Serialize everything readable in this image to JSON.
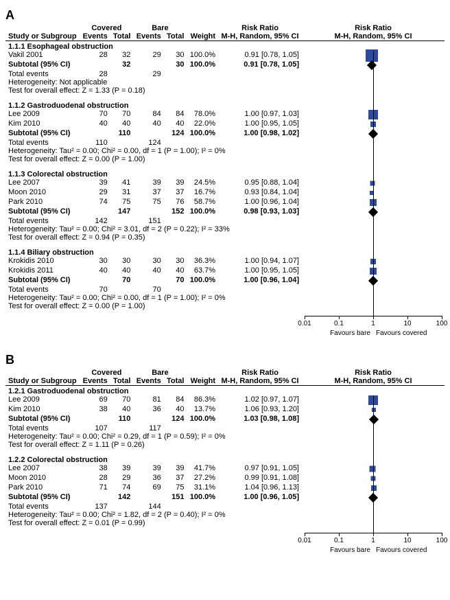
{
  "panels": [
    {
      "label": "A",
      "groupPrefix": "1.1",
      "groups": [
        {
          "title": "1.1.1 Esophageal obstruction",
          "rows": [
            {
              "study": "Vakil 2001",
              "ce": 28,
              "ct": 32,
              "be": 29,
              "bt": 30,
              "w": "100.0%",
              "rr": "0.91 [0.78, 1.05]",
              "pt": 0.91,
              "lo": 0.78,
              "hi": 1.05,
              "sz": 18
            }
          ],
          "subtotal": {
            "ct": 32,
            "bt": 30,
            "w": "100.0%",
            "rr": "0.91 [0.78, 1.05]",
            "pt": 0.91
          },
          "totalEvents": {
            "c": 28,
            "b": 29
          },
          "het": "Heterogeneity: Not applicable",
          "eff": "Test for overall effect: Z = 1.33 (P = 0.18)"
        },
        {
          "title": "1.1.2 Gastroduodenal obstruction",
          "rows": [
            {
              "study": "Lee 2009",
              "ce": 70,
              "ct": 70,
              "be": 84,
              "bt": 84,
              "w": "78.0%",
              "rr": "1.00 [0.97, 1.03]",
              "pt": 1.0,
              "lo": 0.97,
              "hi": 1.03,
              "sz": 14
            },
            {
              "study": "Kim 2010",
              "ce": 40,
              "ct": 40,
              "be": 40,
              "bt": 40,
              "w": "22.0%",
              "rr": "1.00 [0.95, 1.05]",
              "pt": 1.0,
              "lo": 0.95,
              "hi": 1.05,
              "sz": 8
            }
          ],
          "subtotal": {
            "ct": 110,
            "bt": 124,
            "w": "100.0%",
            "rr": "1.00 [0.98, 1.02]",
            "pt": 1.0
          },
          "totalEvents": {
            "c": 110,
            "b": 124
          },
          "het": "Heterogeneity: Tau² = 0.00; Chi² = 0.00, df = 1 (P = 1.00); I² = 0%",
          "eff": "Test for overall effect: Z = 0.00 (P = 1.00)"
        },
        {
          "title": "1.1.3 Colorectal obstruction",
          "rows": [
            {
              "study": "Lee 2007",
              "ce": 39,
              "ct": 41,
              "be": 39,
              "bt": 39,
              "w": "24.5%",
              "rr": "0.95 [0.88, 1.04]",
              "pt": 0.95,
              "lo": 0.88,
              "hi": 1.04,
              "sz": 7
            },
            {
              "study": "Moon 2010",
              "ce": 29,
              "ct": 31,
              "be": 37,
              "bt": 37,
              "w": "16.7%",
              "rr": "0.93 [0.84, 1.04]",
              "pt": 0.93,
              "lo": 0.84,
              "hi": 1.04,
              "sz": 6
            },
            {
              "study": "Park 2010",
              "ce": 74,
              "ct": 75,
              "be": 75,
              "bt": 76,
              "w": "58.7%",
              "rr": "1.00 [0.96, 1.04]",
              "pt": 1.0,
              "lo": 0.96,
              "hi": 1.04,
              "sz": 10
            }
          ],
          "subtotal": {
            "ct": 147,
            "bt": 152,
            "w": "100.0%",
            "rr": "0.98 [0.93, 1.03]",
            "pt": 0.98
          },
          "totalEvents": {
            "c": 142,
            "b": 151
          },
          "het": "Heterogeneity: Tau² = 0.00; Chi² = 3.01, df = 2 (P = 0.22); I² = 33%",
          "eff": "Test for overall effect: Z = 0.94 (P = 0.35)"
        },
        {
          "title": "1.1.4 Biliary obstruction",
          "rows": [
            {
              "study": "Krokidis 2010",
              "ce": 30,
              "ct": 30,
              "be": 30,
              "bt": 30,
              "w": "36.3%",
              "rr": "1.00 [0.94, 1.07]",
              "pt": 1.0,
              "lo": 0.94,
              "hi": 1.07,
              "sz": 8
            },
            {
              "study": "Krokidis 2011",
              "ce": 40,
              "ct": 40,
              "be": 40,
              "bt": 40,
              "w": "63.7%",
              "rr": "1.00 [0.95, 1.05]",
              "pt": 1.0,
              "lo": 0.95,
              "hi": 1.05,
              "sz": 10
            }
          ],
          "subtotal": {
            "ct": 70,
            "bt": 70,
            "w": "100.0%",
            "rr": "1.00 [0.96, 1.04]",
            "pt": 1.0
          },
          "totalEvents": {
            "c": 70,
            "b": 70
          },
          "het": "Heterogeneity: Tau² = 0.00; Chi² = 0.00, df = 1 (P = 1.00); I² = 0%",
          "eff": "Test for overall effect: Z = 0.00 (P = 1.00)"
        }
      ]
    },
    {
      "label": "B",
      "groupPrefix": "1.2",
      "groups": [
        {
          "title": "1.2.1 Gastroduodenal obstruction",
          "rows": [
            {
              "study": "Lee 2009",
              "ce": 69,
              "ct": 70,
              "be": 81,
              "bt": 84,
              "w": "86.3%",
              "rr": "1.02 [0.97, 1.07]",
              "pt": 1.02,
              "lo": 0.97,
              "hi": 1.07,
              "sz": 14
            },
            {
              "study": "Kim 2010",
              "ce": 38,
              "ct": 40,
              "be": 36,
              "bt": 40,
              "w": "13.7%",
              "rr": "1.06 [0.93, 1.20]",
              "pt": 1.06,
              "lo": 0.93,
              "hi": 1.2,
              "sz": 6
            }
          ],
          "subtotal": {
            "ct": 110,
            "bt": 124,
            "w": "100.0%",
            "rr": "1.03 [0.98, 1.08]",
            "pt": 1.03
          },
          "totalEvents": {
            "c": 107,
            "b": 117
          },
          "het": "Heterogeneity: Tau² = 0.00; Chi² = 0.29, df = 1 (P = 0.59); I² = 0%",
          "eff": "Test for overall effect: Z = 1.11 (P = 0.26)"
        },
        {
          "title": "1.2.2 Colorectal obstruction",
          "rows": [
            {
              "study": "Lee 2007",
              "ce": 38,
              "ct": 39,
              "be": 39,
              "bt": 39,
              "w": "41.7%",
              "rr": "0.97 [0.91, 1.05]",
              "pt": 0.97,
              "lo": 0.91,
              "hi": 1.05,
              "sz": 9
            },
            {
              "study": "Moon 2010",
              "ce": 28,
              "ct": 29,
              "be": 36,
              "bt": 37,
              "w": "27.2%",
              "rr": "0.99 [0.91, 1.08]",
              "pt": 0.99,
              "lo": 0.91,
              "hi": 1.08,
              "sz": 7
            },
            {
              "study": "Park 2010",
              "ce": 71,
              "ct": 74,
              "be": 69,
              "bt": 75,
              "w": "31.1%",
              "rr": "1.04 [0.96, 1.13]",
              "pt": 1.04,
              "lo": 0.96,
              "hi": 1.13,
              "sz": 8
            }
          ],
          "subtotal": {
            "ct": 142,
            "bt": 151,
            "w": "100.0%",
            "rr": "1.00 [0.96, 1.05]",
            "pt": 1.0
          },
          "totalEvents": {
            "c": 137,
            "b": 144
          },
          "het": "Heterogeneity: Tau² = 0.00; Chi² = 1.82, df = 2 (P = 0.40); I² = 0%",
          "eff": "Test for overall effect: Z = 0.01 (P = 0.99)"
        }
      ]
    }
  ],
  "headers": {
    "study": "Study or Subgroup",
    "covered": "Covered",
    "bare": "Bare",
    "events": "Events",
    "total": "Total",
    "weight": "Weight",
    "rr": "Risk Ratio",
    "method": "M-H, Random, 95% CI",
    "subtotal": "Subtotal (95% CI)",
    "totalEvents": "Total events",
    "favBare": "Favours bare",
    "favCov": "Favours covered"
  },
  "axis": {
    "ticks": [
      0.01,
      0.1,
      1,
      10,
      100
    ],
    "plotWidth": 200,
    "markerColor": "#2e4a9e"
  }
}
